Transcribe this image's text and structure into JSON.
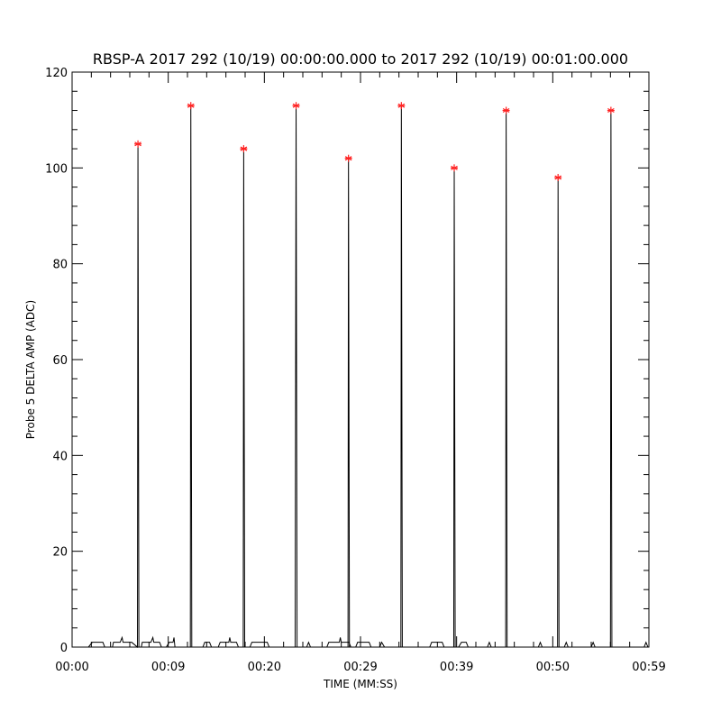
{
  "chart_data": {
    "type": "line",
    "title": "RBSP-A 2017 292 (10/19) 00:00:00.000 to 2017 292 (10/19) 00:01:00.000",
    "xlabel": "TIME (MM:SS)",
    "ylabel": "Probe 5 DELTA AMP (ADC)",
    "x_unit": "seconds",
    "xlim": [
      0,
      60
    ],
    "ylim": [
      0,
      120
    ],
    "x_tick_values": [
      0,
      10,
      20,
      30,
      40,
      50,
      60
    ],
    "x_tick_labels": [
      "00:00",
      "00:09",
      "00:20",
      "00:29",
      "00:39",
      "00:50",
      "00:59"
    ],
    "y_tick_values": [
      0,
      20,
      40,
      60,
      80,
      100,
      120
    ],
    "y_tick_labels": [
      "0",
      "20",
      "40",
      "60",
      "80",
      "100",
      "120"
    ],
    "grid": false,
    "series": [
      {
        "color": "#000000",
        "points": [
          [
            1.7,
            0
          ],
          [
            2.1,
            1
          ],
          [
            3.2,
            1
          ],
          [
            3.4,
            0
          ],
          [
            4.2,
            0
          ],
          [
            4.3,
            1
          ],
          [
            5.0,
            1
          ],
          [
            5.2,
            2
          ],
          [
            5.3,
            1
          ],
          [
            6.2,
            1
          ],
          [
            6.8,
            0
          ],
          [
            6.85,
            105
          ],
          [
            6.95,
            0
          ],
          [
            7.2,
            0
          ],
          [
            7.3,
            1
          ],
          [
            8.2,
            1
          ],
          [
            8.4,
            2
          ],
          [
            8.5,
            1
          ],
          [
            9.1,
            1
          ],
          [
            9.3,
            0
          ],
          [
            9.8,
            0
          ],
          [
            10.1,
            1
          ],
          [
            10.5,
            1
          ],
          [
            10.6,
            2
          ],
          [
            10.7,
            0
          ],
          [
            12.3,
            0
          ],
          [
            12.35,
            113
          ],
          [
            12.45,
            0
          ],
          [
            13.6,
            0
          ],
          [
            13.8,
            1
          ],
          [
            14.3,
            1
          ],
          [
            14.5,
            0
          ],
          [
            15.2,
            0
          ],
          [
            15.4,
            1
          ],
          [
            16.3,
            1
          ],
          [
            16.4,
            2
          ],
          [
            16.5,
            1
          ],
          [
            17.1,
            1
          ],
          [
            17.3,
            0
          ],
          [
            17.8,
            0
          ],
          [
            17.85,
            104
          ],
          [
            17.95,
            0
          ],
          [
            18.5,
            0
          ],
          [
            18.7,
            1
          ],
          [
            20.3,
            1
          ],
          [
            20.5,
            0
          ],
          [
            23.2,
            0
          ],
          [
            23.3,
            113
          ],
          [
            23.4,
            0
          ],
          [
            24.4,
            0
          ],
          [
            24.6,
            1
          ],
          [
            24.8,
            0
          ],
          [
            26.5,
            0
          ],
          [
            26.7,
            1
          ],
          [
            27.8,
            1
          ],
          [
            27.9,
            2
          ],
          [
            28.0,
            1
          ],
          [
            28.8,
            1
          ],
          [
            29.0,
            0
          ],
          [
            28.7,
            0
          ],
          [
            28.75,
            102
          ],
          [
            28.85,
            0
          ],
          [
            29.5,
            0
          ],
          [
            29.7,
            1
          ],
          [
            30.9,
            1
          ],
          [
            31.1,
            0
          ],
          [
            32.0,
            0
          ],
          [
            32.2,
            1
          ],
          [
            32.5,
            0
          ],
          [
            34.2,
            0
          ],
          [
            34.25,
            113
          ],
          [
            34.35,
            0
          ],
          [
            37.2,
            0
          ],
          [
            37.4,
            1
          ],
          [
            38.5,
            1
          ],
          [
            38.7,
            0
          ],
          [
            39.7,
            0
          ],
          [
            39.75,
            100
          ],
          [
            39.85,
            0
          ],
          [
            40.2,
            0
          ],
          [
            40.5,
            1
          ],
          [
            41.0,
            1
          ],
          [
            41.2,
            0
          ],
          [
            43.2,
            0
          ],
          [
            43.4,
            1
          ],
          [
            43.6,
            0
          ],
          [
            45.1,
            0
          ],
          [
            45.15,
            112
          ],
          [
            45.25,
            0
          ],
          [
            48.5,
            0
          ],
          [
            48.7,
            1
          ],
          [
            48.9,
            0
          ],
          [
            50.5,
            0
          ],
          [
            50.55,
            98
          ],
          [
            50.65,
            0
          ],
          [
            51.2,
            0
          ],
          [
            51.4,
            1
          ],
          [
            51.6,
            0
          ],
          [
            54.0,
            0
          ],
          [
            54.2,
            1
          ],
          [
            54.4,
            0
          ],
          [
            56.0,
            0
          ],
          [
            56.05,
            112
          ],
          [
            56.15,
            0
          ],
          [
            59.5,
            0
          ],
          [
            59.7,
            1
          ],
          [
            59.9,
            0
          ]
        ]
      }
    ],
    "peak_markers": {
      "color": "#ff2020",
      "symbol": "asterisk",
      "points": [
        [
          6.85,
          105
        ],
        [
          12.35,
          113
        ],
        [
          17.85,
          104
        ],
        [
          23.3,
          113
        ],
        [
          28.75,
          102
        ],
        [
          34.25,
          113
        ],
        [
          39.75,
          100
        ],
        [
          45.15,
          112
        ],
        [
          50.55,
          98
        ],
        [
          56.05,
          112
        ]
      ]
    }
  }
}
